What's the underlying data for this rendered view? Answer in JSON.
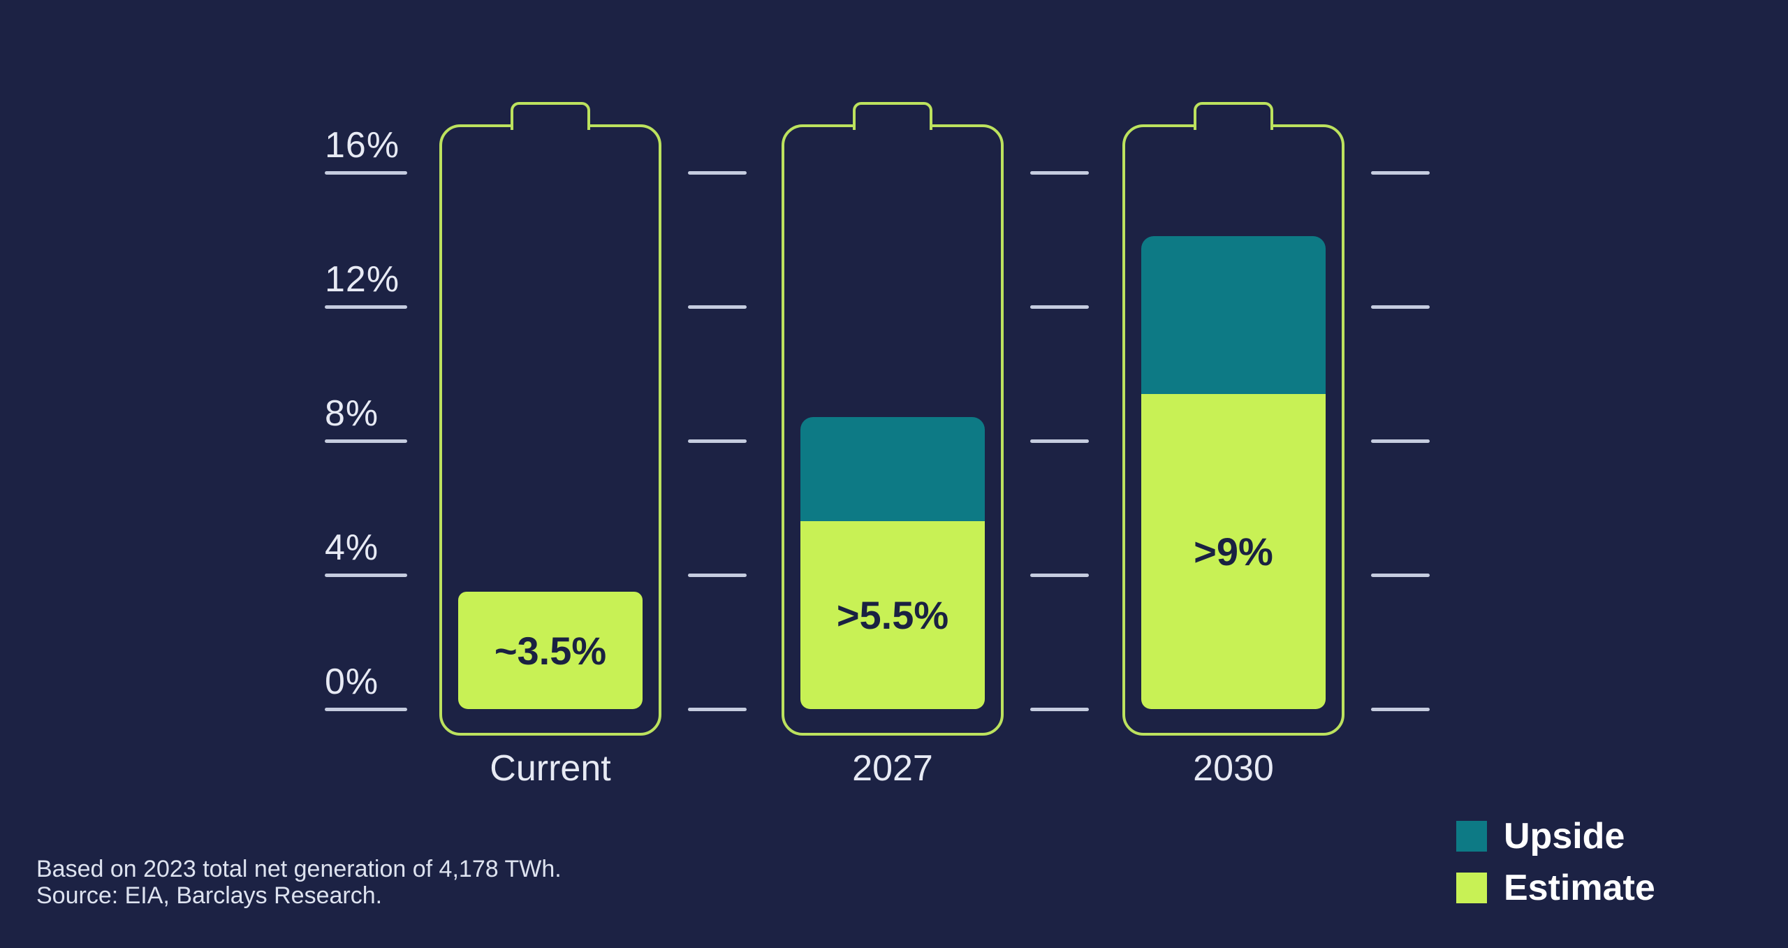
{
  "chart_data": {
    "type": "bar",
    "subtype": "battery-stacked-bars",
    "title": "",
    "xlabel": "",
    "ylabel": "",
    "categories": [
      "Current",
      "2027",
      "2030"
    ],
    "series": [
      {
        "name": "Estimate",
        "values": [
          3.5,
          5.6,
          9.4
        ],
        "color": "#c8f155"
      },
      {
        "name": "Upside",
        "values": [
          0,
          3.1,
          4.7
        ],
        "color": "#0d7a85"
      }
    ],
    "bar_labels": [
      "~3.5%",
      ">5.5%",
      ">9%"
    ],
    "yticks": [
      {
        "label": "16%",
        "value": 16
      },
      {
        "label": "12%",
        "value": 12
      },
      {
        "label": "8%",
        "value": 8
      },
      {
        "label": "4%",
        "value": 4
      },
      {
        "label": "0%",
        "value": 0
      }
    ],
    "ylim": [
      0,
      17.4
    ],
    "grid": "short dashes at each tick level beside every battery",
    "legend_position": "bottom-right"
  },
  "legend": {
    "items": [
      {
        "label": "Upside",
        "color": "#0d7a85"
      },
      {
        "label": "Estimate",
        "color": "#c8f155"
      }
    ]
  },
  "footer": {
    "line1": "Based on 2023 total net generation of 4,178 TWh.",
    "line2": "Source: EIA, Barclays Research."
  },
  "colors": {
    "background": "#1c2244",
    "battery_outline": "#bce25e",
    "estimate_fill": "#c8f155",
    "upside_fill": "#0d7a85",
    "bar_label_text": "#1a2142",
    "axis_text": "#e7eaf4",
    "tick_line": "#c5ccdf",
    "category_text": "#e7eaf4",
    "legend_text": "#ffffff",
    "footer_text": "#dde2ef"
  }
}
